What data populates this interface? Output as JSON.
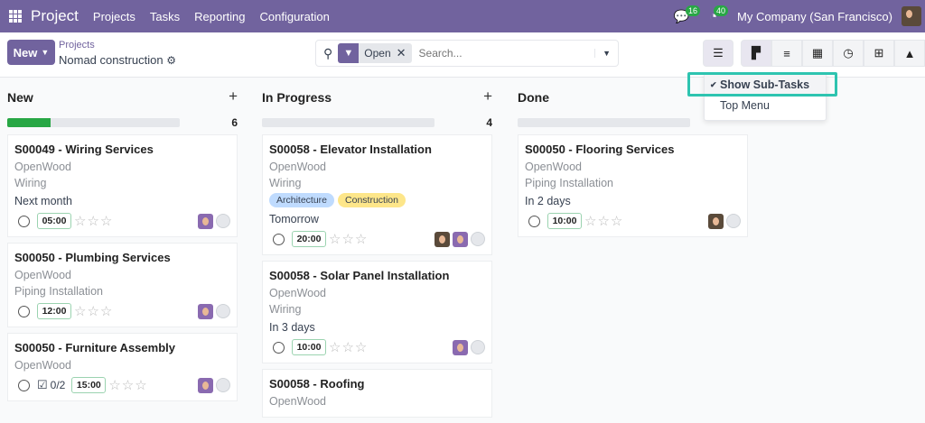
{
  "nav": {
    "app": "Project",
    "menu": [
      "Projects",
      "Tasks",
      "Reporting",
      "Configuration"
    ],
    "messages_count": "16",
    "activities_count": "40",
    "company": "My Company (San Francisco)"
  },
  "control": {
    "new_label": "New",
    "breadcrumb_parent": "Projects",
    "breadcrumb_current": "Nomad construction",
    "facet": "Open",
    "search_placeholder": "Search..."
  },
  "dropdown": {
    "items": [
      "Show Sub-Tasks",
      "Top Menu"
    ],
    "checked": "Show Sub-Tasks"
  },
  "views": [
    "kanban",
    "list",
    "calendar",
    "activity",
    "pivot",
    "graph"
  ],
  "columns": [
    {
      "title": "New",
      "count": "6",
      "progress": 0.25,
      "cards": [
        {
          "name": "S00049 - Wiring Services",
          "company": "OpenWood",
          "stage": "Wiring",
          "deadline": "Next month",
          "time": "05:00",
          "avatars": [
            "purple"
          ]
        },
        {
          "name": "S00050 - Plumbing Services",
          "company": "OpenWood",
          "stage": "Piping Installation",
          "time": "12:00",
          "avatars": [
            "purple"
          ]
        },
        {
          "name": "S00050 - Furniture Assembly",
          "company": "OpenWood",
          "subtasks": "0/2",
          "time": "15:00",
          "avatars": [
            "purple"
          ]
        }
      ]
    },
    {
      "title": "In Progress",
      "count": "4",
      "progress": 0,
      "cards": [
        {
          "name": "S00058 - Elevator Installation",
          "company": "OpenWood",
          "stage": "Wiring",
          "tags": [
            {
              "label": "Architecture",
              "color": "#bfdbfe"
            },
            {
              "label": "Construction",
              "color": "#fde68a"
            }
          ],
          "deadline": "Tomorrow",
          "time": "20:00",
          "avatars": [
            "brown",
            "purple"
          ]
        },
        {
          "name": "S00058 - Solar Panel Installation",
          "company": "OpenWood",
          "stage": "Wiring",
          "deadline": "In 3 days",
          "time": "10:00",
          "avatars": [
            "purple"
          ]
        },
        {
          "name": "S00058 - Roofing",
          "company": "OpenWood"
        }
      ]
    },
    {
      "title": "Done",
      "count": "",
      "progress": 0,
      "cards": [
        {
          "name": "S00050 - Flooring Services",
          "company": "OpenWood",
          "stage": "Piping Installation",
          "deadline": "In 2 days",
          "time": "10:00",
          "avatars": [
            "brown"
          ]
        }
      ]
    }
  ]
}
